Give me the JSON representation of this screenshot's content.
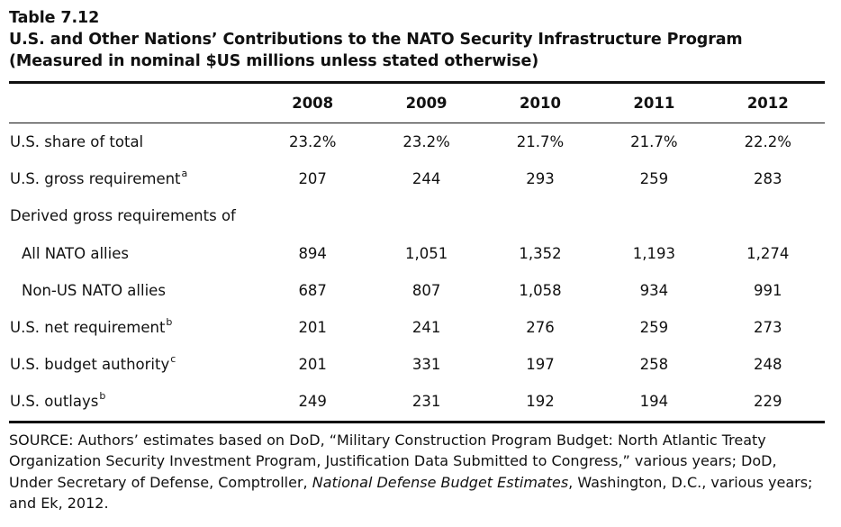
{
  "caption": {
    "number": "Table 7.12",
    "title": "U.S. and Other Nations’ Contributions to the NATO Security Infrastructure Program",
    "subtitle": "(Measured in nominal $US millions unless stated otherwise)"
  },
  "table": {
    "columns": [
      "2008",
      "2009",
      "2010",
      "2011",
      "2012"
    ],
    "rows": [
      {
        "label": "U.S. share of total",
        "note": "",
        "indent": false,
        "values": [
          "23.2%",
          "23.2%",
          "21.7%",
          "21.7%",
          "22.2%"
        ]
      },
      {
        "label": "U.S. gross requirement",
        "note": "a",
        "indent": false,
        "values": [
          "207",
          "244",
          "293",
          "259",
          "283"
        ]
      },
      {
        "label": "Derived gross requirements of",
        "note": "",
        "indent": false,
        "values": [
          "",
          "",
          "",
          "",
          ""
        ]
      },
      {
        "label": "All NATO allies",
        "note": "",
        "indent": true,
        "values": [
          "894",
          "1,051",
          "1,352",
          "1,193",
          "1,274"
        ]
      },
      {
        "label": "Non-US NATO allies",
        "note": "",
        "indent": true,
        "values": [
          "687",
          "807",
          "1,058",
          "934",
          "991"
        ]
      },
      {
        "label": "U.S. net requirement",
        "note": "b",
        "indent": false,
        "values": [
          "201",
          "241",
          "276",
          "259",
          "273"
        ]
      },
      {
        "label": "U.S. budget authority",
        "note": "c",
        "indent": false,
        "values": [
          "201",
          "331",
          "197",
          "258",
          "248"
        ]
      },
      {
        "label": "U.S. outlays",
        "note": "b",
        "indent": false,
        "values": [
          "249",
          "231",
          "192",
          "194",
          "229"
        ]
      }
    ]
  },
  "source": {
    "part1": "SOURCE: Authors’ estimates based on DoD, “Military Construction Program Budget: North Atlantic Treaty Organization Security Investment Program, Justification Data Submitted to Congress,” various years; DoD, Under Secretary of Defense, Comptroller, ",
    "italic": "National Defense Budget Estimates",
    "part2": ", Washington, D.C., various years; and Ek, 2012."
  }
}
